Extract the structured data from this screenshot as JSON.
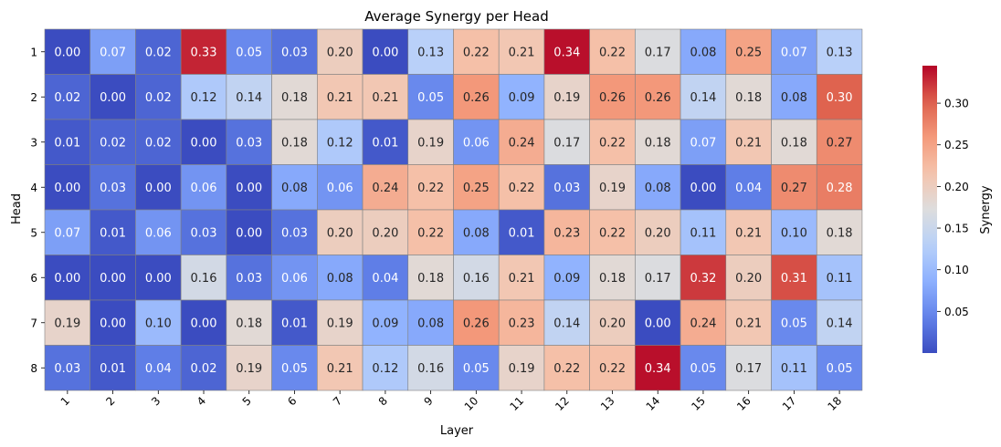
{
  "chart_data": {
    "type": "heatmap",
    "title": "Average Synergy per Head",
    "xlabel": "Layer",
    "ylabel": "Head",
    "x_categories": [
      "1",
      "2",
      "3",
      "4",
      "5",
      "6",
      "7",
      "8",
      "9",
      "10",
      "11",
      "12",
      "13",
      "14",
      "15",
      "16",
      "17",
      "18"
    ],
    "y_categories": [
      "1",
      "2",
      "3",
      "4",
      "5",
      "6",
      "7",
      "8"
    ],
    "values": [
      [
        0.0,
        0.07,
        0.02,
        0.33,
        0.05,
        0.03,
        0.2,
        0.0,
        0.13,
        0.22,
        0.21,
        0.34,
        0.22,
        0.17,
        0.08,
        0.25,
        0.07,
        0.13
      ],
      [
        0.02,
        0.0,
        0.02,
        0.12,
        0.14,
        0.18,
        0.21,
        0.21,
        0.05,
        0.26,
        0.09,
        0.19,
        0.26,
        0.26,
        0.14,
        0.18,
        0.08,
        0.3
      ],
      [
        0.01,
        0.02,
        0.02,
        0.0,
        0.03,
        0.18,
        0.12,
        0.01,
        0.19,
        0.06,
        0.24,
        0.17,
        0.22,
        0.18,
        0.07,
        0.21,
        0.18,
        0.27
      ],
      [
        0.0,
        0.03,
        0.0,
        0.06,
        0.0,
        0.08,
        0.06,
        0.24,
        0.22,
        0.25,
        0.22,
        0.03,
        0.19,
        0.08,
        0.0,
        0.04,
        0.27,
        0.28
      ],
      [
        0.07,
        0.01,
        0.06,
        0.03,
        0.0,
        0.03,
        0.2,
        0.2,
        0.22,
        0.08,
        0.01,
        0.23,
        0.22,
        0.2,
        0.11,
        0.21,
        0.1,
        0.18
      ],
      [
        0.0,
        0.0,
        0.0,
        0.16,
        0.03,
        0.06,
        0.08,
        0.04,
        0.18,
        0.16,
        0.21,
        0.09,
        0.18,
        0.17,
        0.32,
        0.2,
        0.31,
        0.11
      ],
      [
        0.19,
        0.0,
        0.1,
        0.0,
        0.18,
        0.01,
        0.19,
        0.09,
        0.08,
        0.26,
        0.23,
        0.14,
        0.2,
        0.0,
        0.24,
        0.21,
        0.05,
        0.14
      ],
      [
        0.03,
        0.01,
        0.04,
        0.02,
        0.19,
        0.05,
        0.21,
        0.12,
        0.16,
        0.05,
        0.19,
        0.22,
        0.22,
        0.34,
        0.05,
        0.17,
        0.11,
        0.05
      ]
    ],
    "colormap": "coolwarm",
    "vmin": 0.0,
    "vmax": 0.345,
    "colorbar": {
      "label": "Synergy",
      "ticks": [
        "0.05",
        "0.10",
        "0.15",
        "0.20",
        "0.25",
        "0.30"
      ],
      "tick_values": [
        0.05,
        0.1,
        0.15,
        0.2,
        0.25,
        0.3
      ]
    },
    "cell_border_color": "#808080"
  }
}
